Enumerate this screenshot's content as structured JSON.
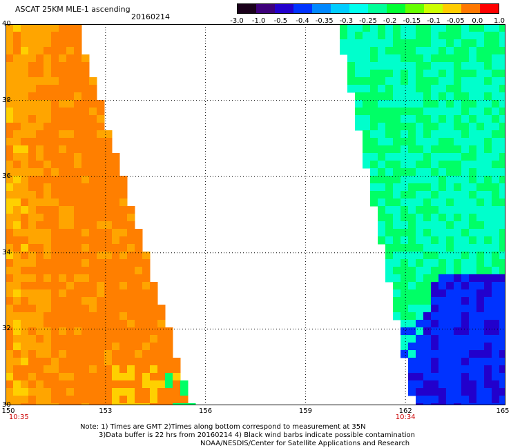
{
  "header": {
    "title": "ASCAT 25KM MLE-1 ascending",
    "date": "20160214"
  },
  "colorbar": {
    "labels": [
      "-3.0",
      "-1.0",
      "-0.5",
      "-0.4",
      "-0.35",
      "-0.3",
      "-0.25",
      "-0.2",
      "-0.15",
      "-0.1",
      "-0.05",
      "0.0",
      "1.0"
    ],
    "colors": [
      "#1a001a",
      "#3d007a",
      "#2200cc",
      "#0033ff",
      "#0088ff",
      "#00ccff",
      "#00ffee",
      "#00ff99",
      "#00ff33",
      "#66ff00",
      "#ccff00",
      "#ffcc00",
      "#ff7700",
      "#ff0000"
    ]
  },
  "map": {
    "lat_labels": [
      "40",
      "38",
      "36",
      "34",
      "32",
      "30"
    ],
    "lon_labels": [
      "150",
      "153",
      "156",
      "159",
      "162",
      "165"
    ],
    "pass_times": [
      "10:35",
      "10:34"
    ],
    "colors": {
      "orange": "#ff7f00",
      "light_orange": "#ffa500",
      "yellow": "#ffd000",
      "green": "#00ff66",
      "cyan": "#00ffcc",
      "blue": "#0033ff",
      "dark_blue": "#2200cc"
    }
  },
  "notes": {
    "line1": "Note: 1) Times are GMT 2)Times along bottom correspond to measurement at 35N",
    "line2": "3)Data buffer is 22 hrs from 20160214 4) Black wind barbs indicate possible contamination",
    "line3": "NOAA/NESDIS/Center for Satellite Applications and Research"
  }
}
